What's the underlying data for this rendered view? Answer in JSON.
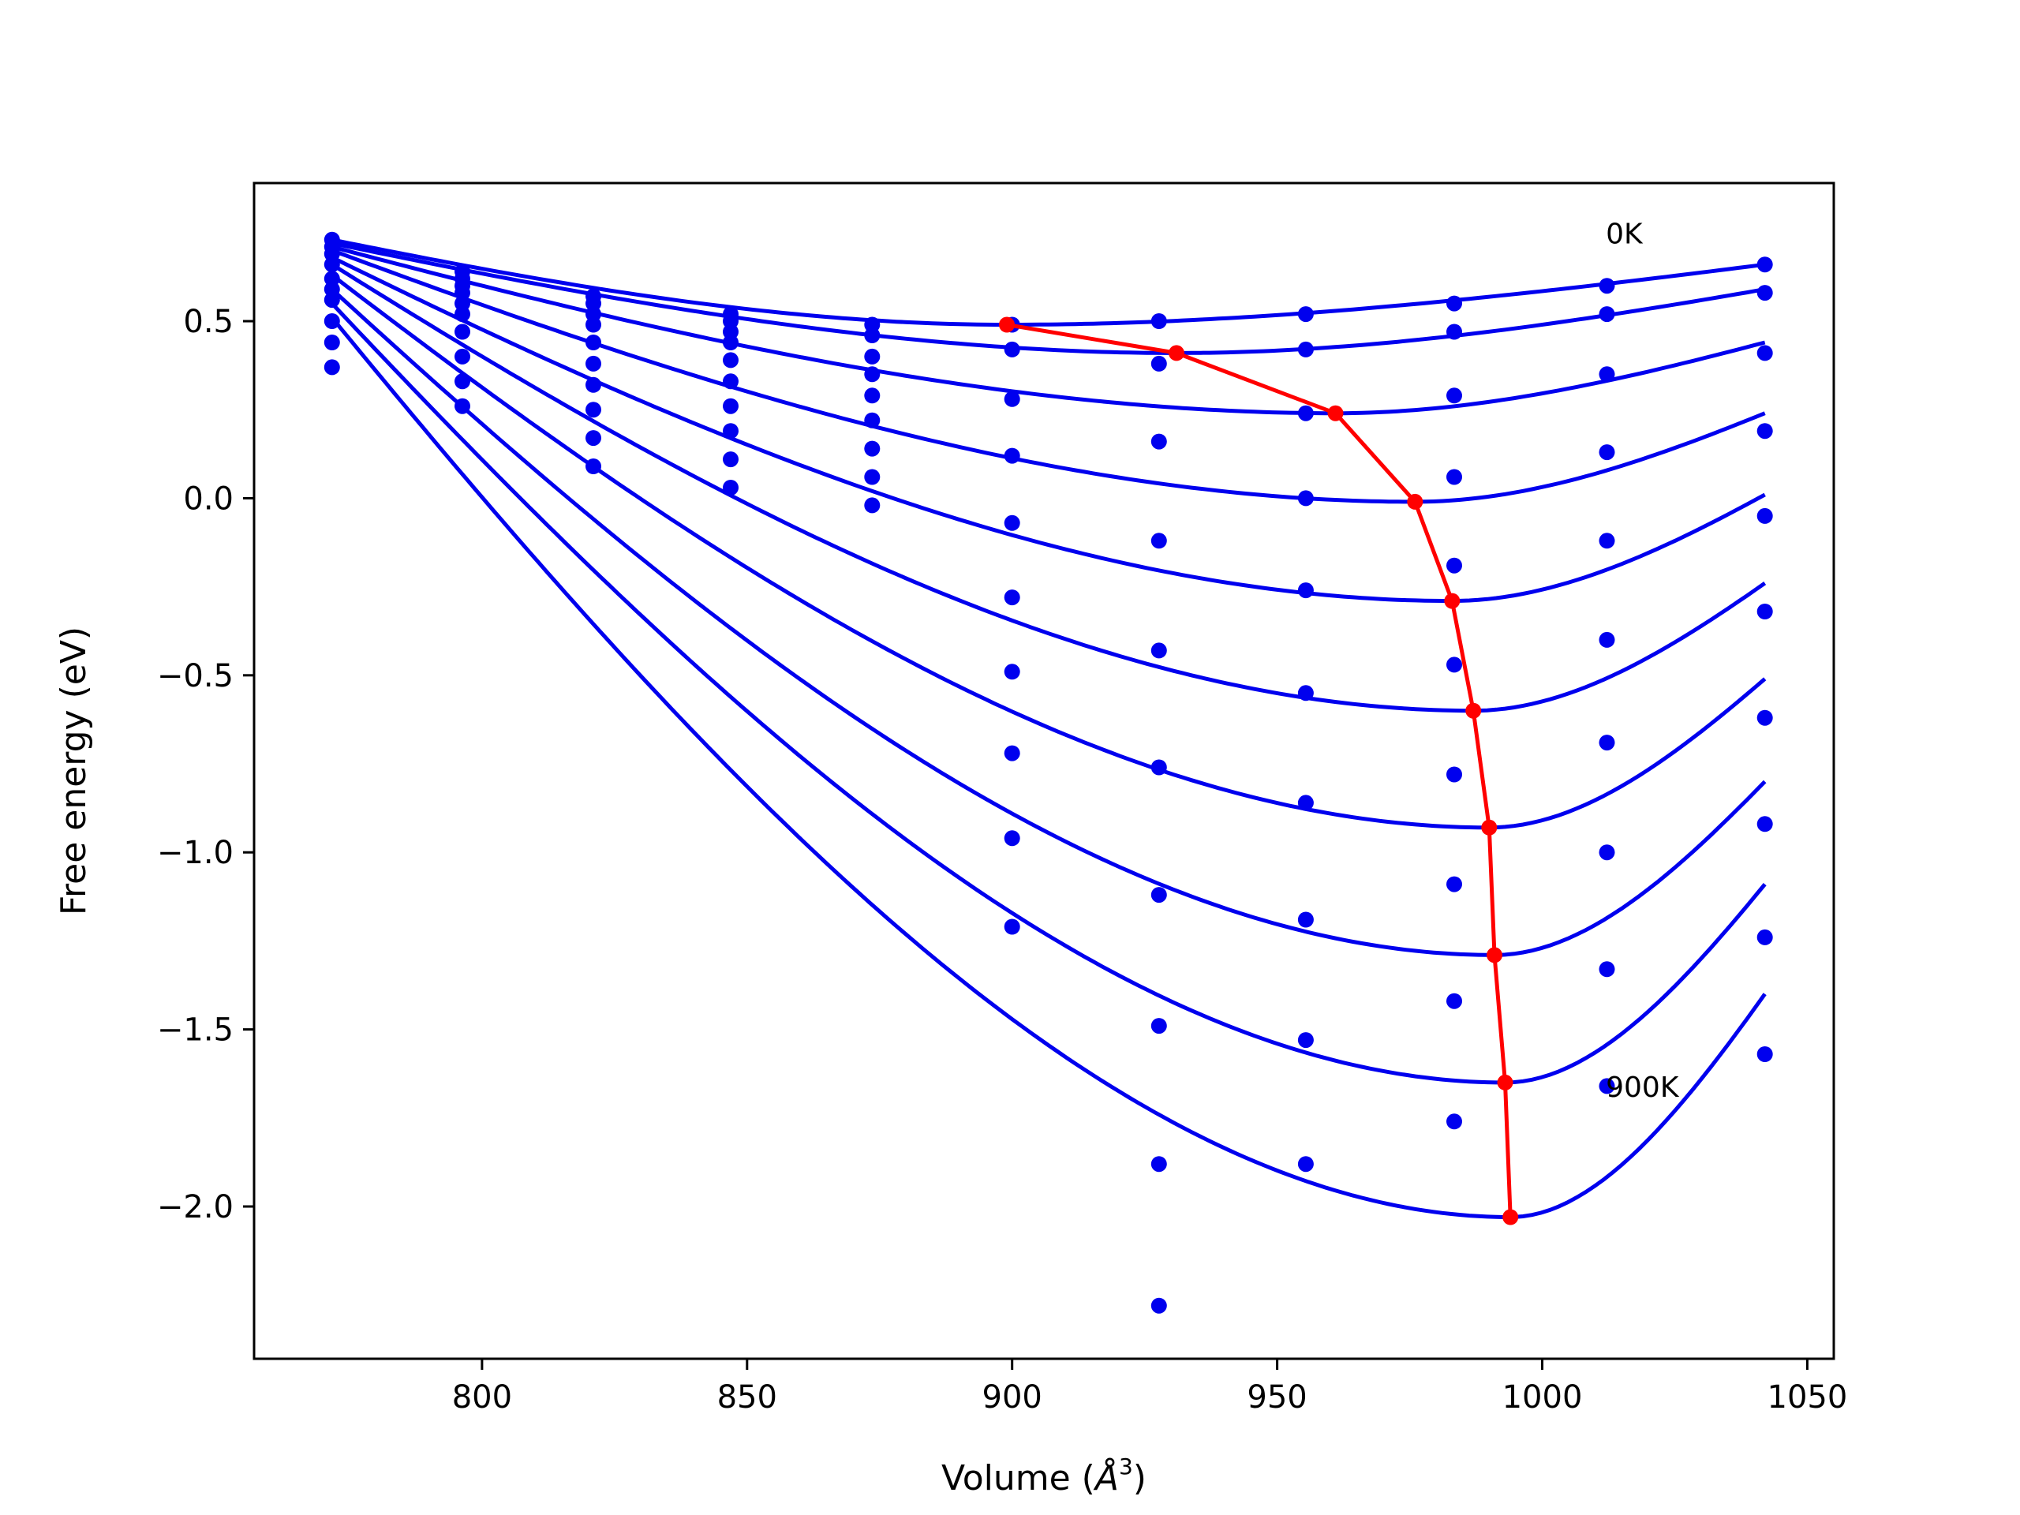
{
  "chart_data": {
    "type": "line",
    "xlabel_prefix": "Volume (",
    "xlabel_unit": "Å",
    "xlabel_exp": "3",
    "xlabel_suffix": ")",
    "ylabel": "Free energy (eV)",
    "xlim": [
      757,
      1055
    ],
    "ylim": [
      -2.43,
      0.89
    ],
    "x_ticks": [
      800,
      850,
      900,
      950,
      1000,
      1050
    ],
    "x_tick_labels": [
      "800",
      "850",
      "900",
      "950",
      "1000",
      "1050"
    ],
    "y_ticks": [
      0.5,
      0.0,
      -0.5,
      -1.0,
      -1.5,
      -2.0
    ],
    "y_tick_labels": [
      "0.5",
      "0.0",
      "−0.5",
      "−1.0",
      "−1.5",
      "−2.0"
    ],
    "grid": false,
    "annotations": [
      {
        "text": "0K",
        "x": 1012,
        "y": 0.72
      },
      {
        "text": "900K",
        "x": 1012,
        "y": -1.69
      }
    ],
    "colors": {
      "fit": "#0000ee",
      "points": "#0000ee",
      "minima": "#ff0000"
    },
    "volumes": [
      771.7,
      796.3,
      821.0,
      846.9,
      873.6,
      900.0,
      927.7,
      955.4,
      983.4,
      1012.2,
      1042.0
    ],
    "series": [
      {
        "values": [
          0.73,
          0.64,
          0.57,
          0.52,
          0.49,
          0.49,
          0.5,
          0.52,
          0.55,
          0.6,
          0.66
        ],
        "curve_min": {
          "x": 899,
          "y": 0.49
        },
        "curve_left": 0.73,
        "curve_right": 0.66
      },
      {
        "values": [
          0.71,
          0.62,
          0.55,
          0.5,
          0.46,
          0.42,
          0.38,
          0.42,
          0.47,
          0.52,
          0.58
        ],
        "curve_min": {
          "x": 931,
          "y": 0.41
        },
        "curve_left": 0.72,
        "curve_right": 0.59
      },
      {
        "values": [
          0.69,
          0.6,
          0.52,
          0.47,
          0.4,
          0.28,
          0.16,
          0.24,
          0.29,
          0.35,
          0.41
        ],
        "curve_min": {
          "x": 961,
          "y": 0.24
        },
        "curve_left": 0.71,
        "curve_right": 0.44
      },
      {
        "values": [
          0.66,
          0.58,
          0.49,
          0.44,
          0.35,
          0.12,
          -0.12,
          0.0,
          0.06,
          0.13,
          0.19
        ],
        "curve_min": {
          "x": 976,
          "y": -0.01
        },
        "curve_left": 0.7,
        "curve_right": 0.24
      },
      {
        "values": [
          0.62,
          0.55,
          0.44,
          0.39,
          0.29,
          -0.07,
          -0.43,
          -0.26,
          -0.19,
          -0.12,
          -0.05
        ],
        "curve_min": {
          "x": 983,
          "y": -0.29
        },
        "curve_left": 0.68,
        "curve_right": 0.01
      },
      {
        "values": [
          0.59,
          0.52,
          0.38,
          0.33,
          0.22,
          -0.28,
          -0.76,
          -0.55,
          -0.47,
          -0.4,
          -0.32
        ],
        "curve_min": {
          "x": 987,
          "y": -0.6
        },
        "curve_left": 0.66,
        "curve_right": -0.24
      },
      {
        "values": [
          0.56,
          0.47,
          0.32,
          0.26,
          0.14,
          -0.49,
          -1.12,
          -0.86,
          -0.78,
          -0.69,
          -0.62
        ],
        "curve_min": {
          "x": 990,
          "y": -0.93
        },
        "curve_left": 0.63,
        "curve_right": -0.51
      },
      {
        "values": [
          0.5,
          0.4,
          0.25,
          0.19,
          0.06,
          -0.72,
          -1.49,
          -1.19,
          -1.09,
          -1.0,
          -0.92
        ],
        "curve_min": {
          "x": 991,
          "y": -1.29
        },
        "curve_left": 0.59,
        "curve_right": -0.8
      },
      {
        "values": [
          0.44,
          0.33,
          0.17,
          0.11,
          -0.02,
          -0.96,
          -1.88,
          -1.53,
          -1.42,
          -1.33,
          -1.24
        ],
        "curve_min": {
          "x": 993,
          "y": -1.65
        },
        "curve_left": 0.55,
        "curve_right": -1.09
      },
      {
        "values": [
          0.37,
          0.26,
          0.09,
          0.03,
          null,
          -1.21,
          -2.28,
          -1.88,
          -1.76,
          -1.66,
          -1.57
        ],
        "curve_min": {
          "x": 994,
          "y": -2.03
        },
        "curve_left": 0.51,
        "curve_right": -1.4
      }
    ],
    "minima_line": {
      "x": [
        899,
        931,
        961,
        976,
        983,
        987,
        990,
        991,
        993,
        994
      ],
      "y": [
        0.49,
        0.41,
        0.24,
        -0.01,
        -0.29,
        -0.6,
        -0.93,
        -1.29,
        -1.65,
        -2.03
      ]
    }
  }
}
